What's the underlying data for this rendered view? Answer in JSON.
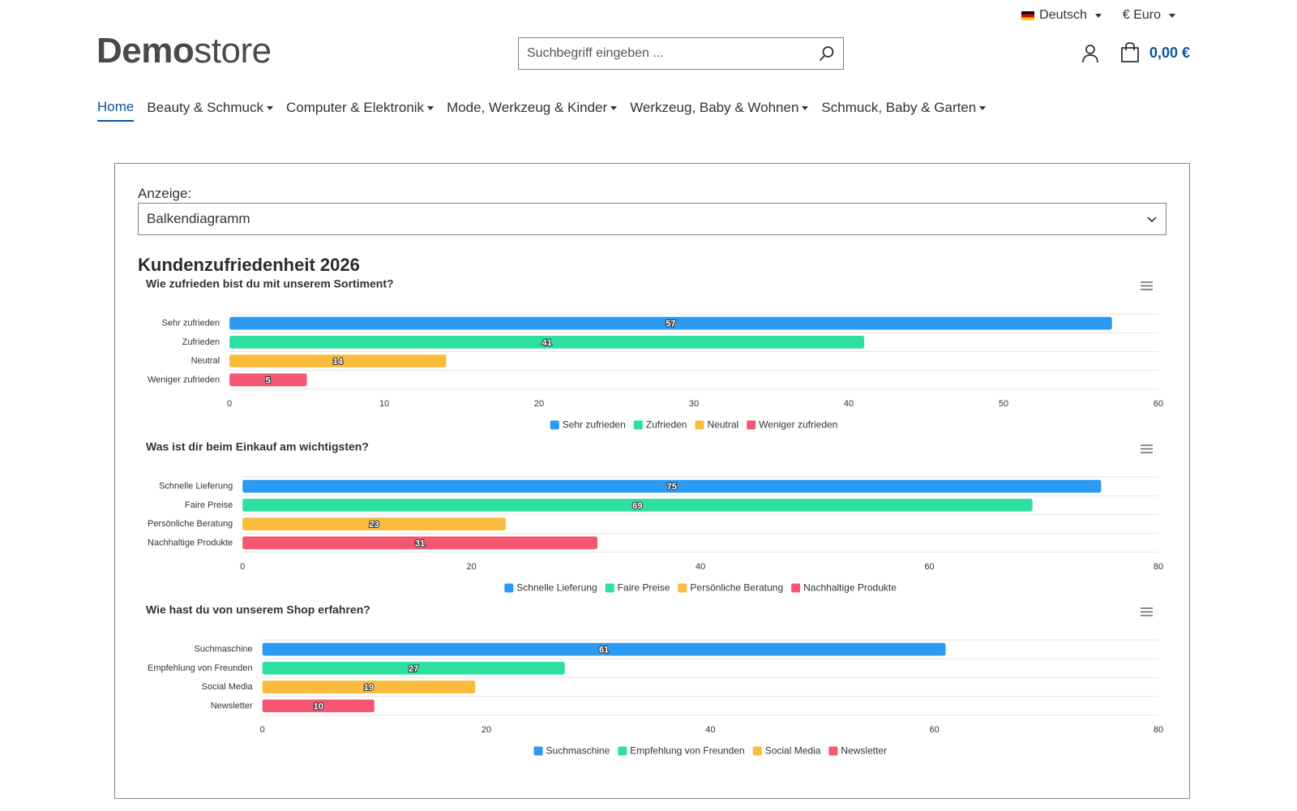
{
  "topbar": {
    "language": "Deutsch",
    "currency": "€ Euro"
  },
  "header": {
    "logo_bold": "Demo",
    "logo_light": "store",
    "search_placeholder": "Suchbegriff eingeben ...",
    "cart_amount": "0,00 €"
  },
  "nav": {
    "items": [
      {
        "label": "Home",
        "active": true
      },
      {
        "label": "Beauty & Schmuck"
      },
      {
        "label": "Computer & Elektronik"
      },
      {
        "label": "Mode, Werkzeug & Kinder"
      },
      {
        "label": "Werkzeug, Baby & Wohnen"
      },
      {
        "label": "Schmuck, Baby & Garten"
      }
    ]
  },
  "main": {
    "anzeige_label": "Anzeige:",
    "select_value": "Balkendiagramm",
    "title": "Kundenzufriedenheit 2026"
  },
  "colors": {
    "series": [
      "#2b9af3",
      "#2ee0a0",
      "#fbbb3c",
      "#f55672"
    ],
    "grid": "#e6e6e6",
    "axis_text": "#333333",
    "link": "#0b539b"
  },
  "chart_data": [
    {
      "type": "bar",
      "orientation": "horizontal",
      "title": "Wie zufrieden bist du mit unserem Sortiment?",
      "categories": [
        "Sehr zufrieden",
        "Zufrieden",
        "Neutral",
        "Weniger zufrieden"
      ],
      "values": [
        57,
        41,
        14,
        5
      ],
      "xlim": [
        0,
        60
      ],
      "ticks": [
        0,
        10,
        20,
        30,
        40,
        50,
        60
      ],
      "legend": "bottom",
      "grid": true
    },
    {
      "type": "bar",
      "orientation": "horizontal",
      "title": "Was ist dir beim Einkauf am wichtigsten?",
      "categories": [
        "Schnelle Lieferung",
        "Faire Preise",
        "Persönliche Beratung",
        "Nachhaltige Produkte"
      ],
      "values": [
        75,
        69,
        23,
        31
      ],
      "xlim": [
        0,
        80
      ],
      "ticks": [
        0,
        20,
        40,
        60,
        80
      ],
      "legend": "bottom",
      "grid": true
    },
    {
      "type": "bar",
      "orientation": "horizontal",
      "title": "Wie hast du von unserem Shop erfahren?",
      "categories": [
        "Suchmaschine",
        "Empfehlung von Freunden",
        "Social Media",
        "Newsletter"
      ],
      "values": [
        61,
        27,
        19,
        10
      ],
      "xlim": [
        0,
        80
      ],
      "ticks": [
        0,
        20,
        40,
        60,
        80
      ],
      "legend": "bottom",
      "grid": true
    }
  ]
}
